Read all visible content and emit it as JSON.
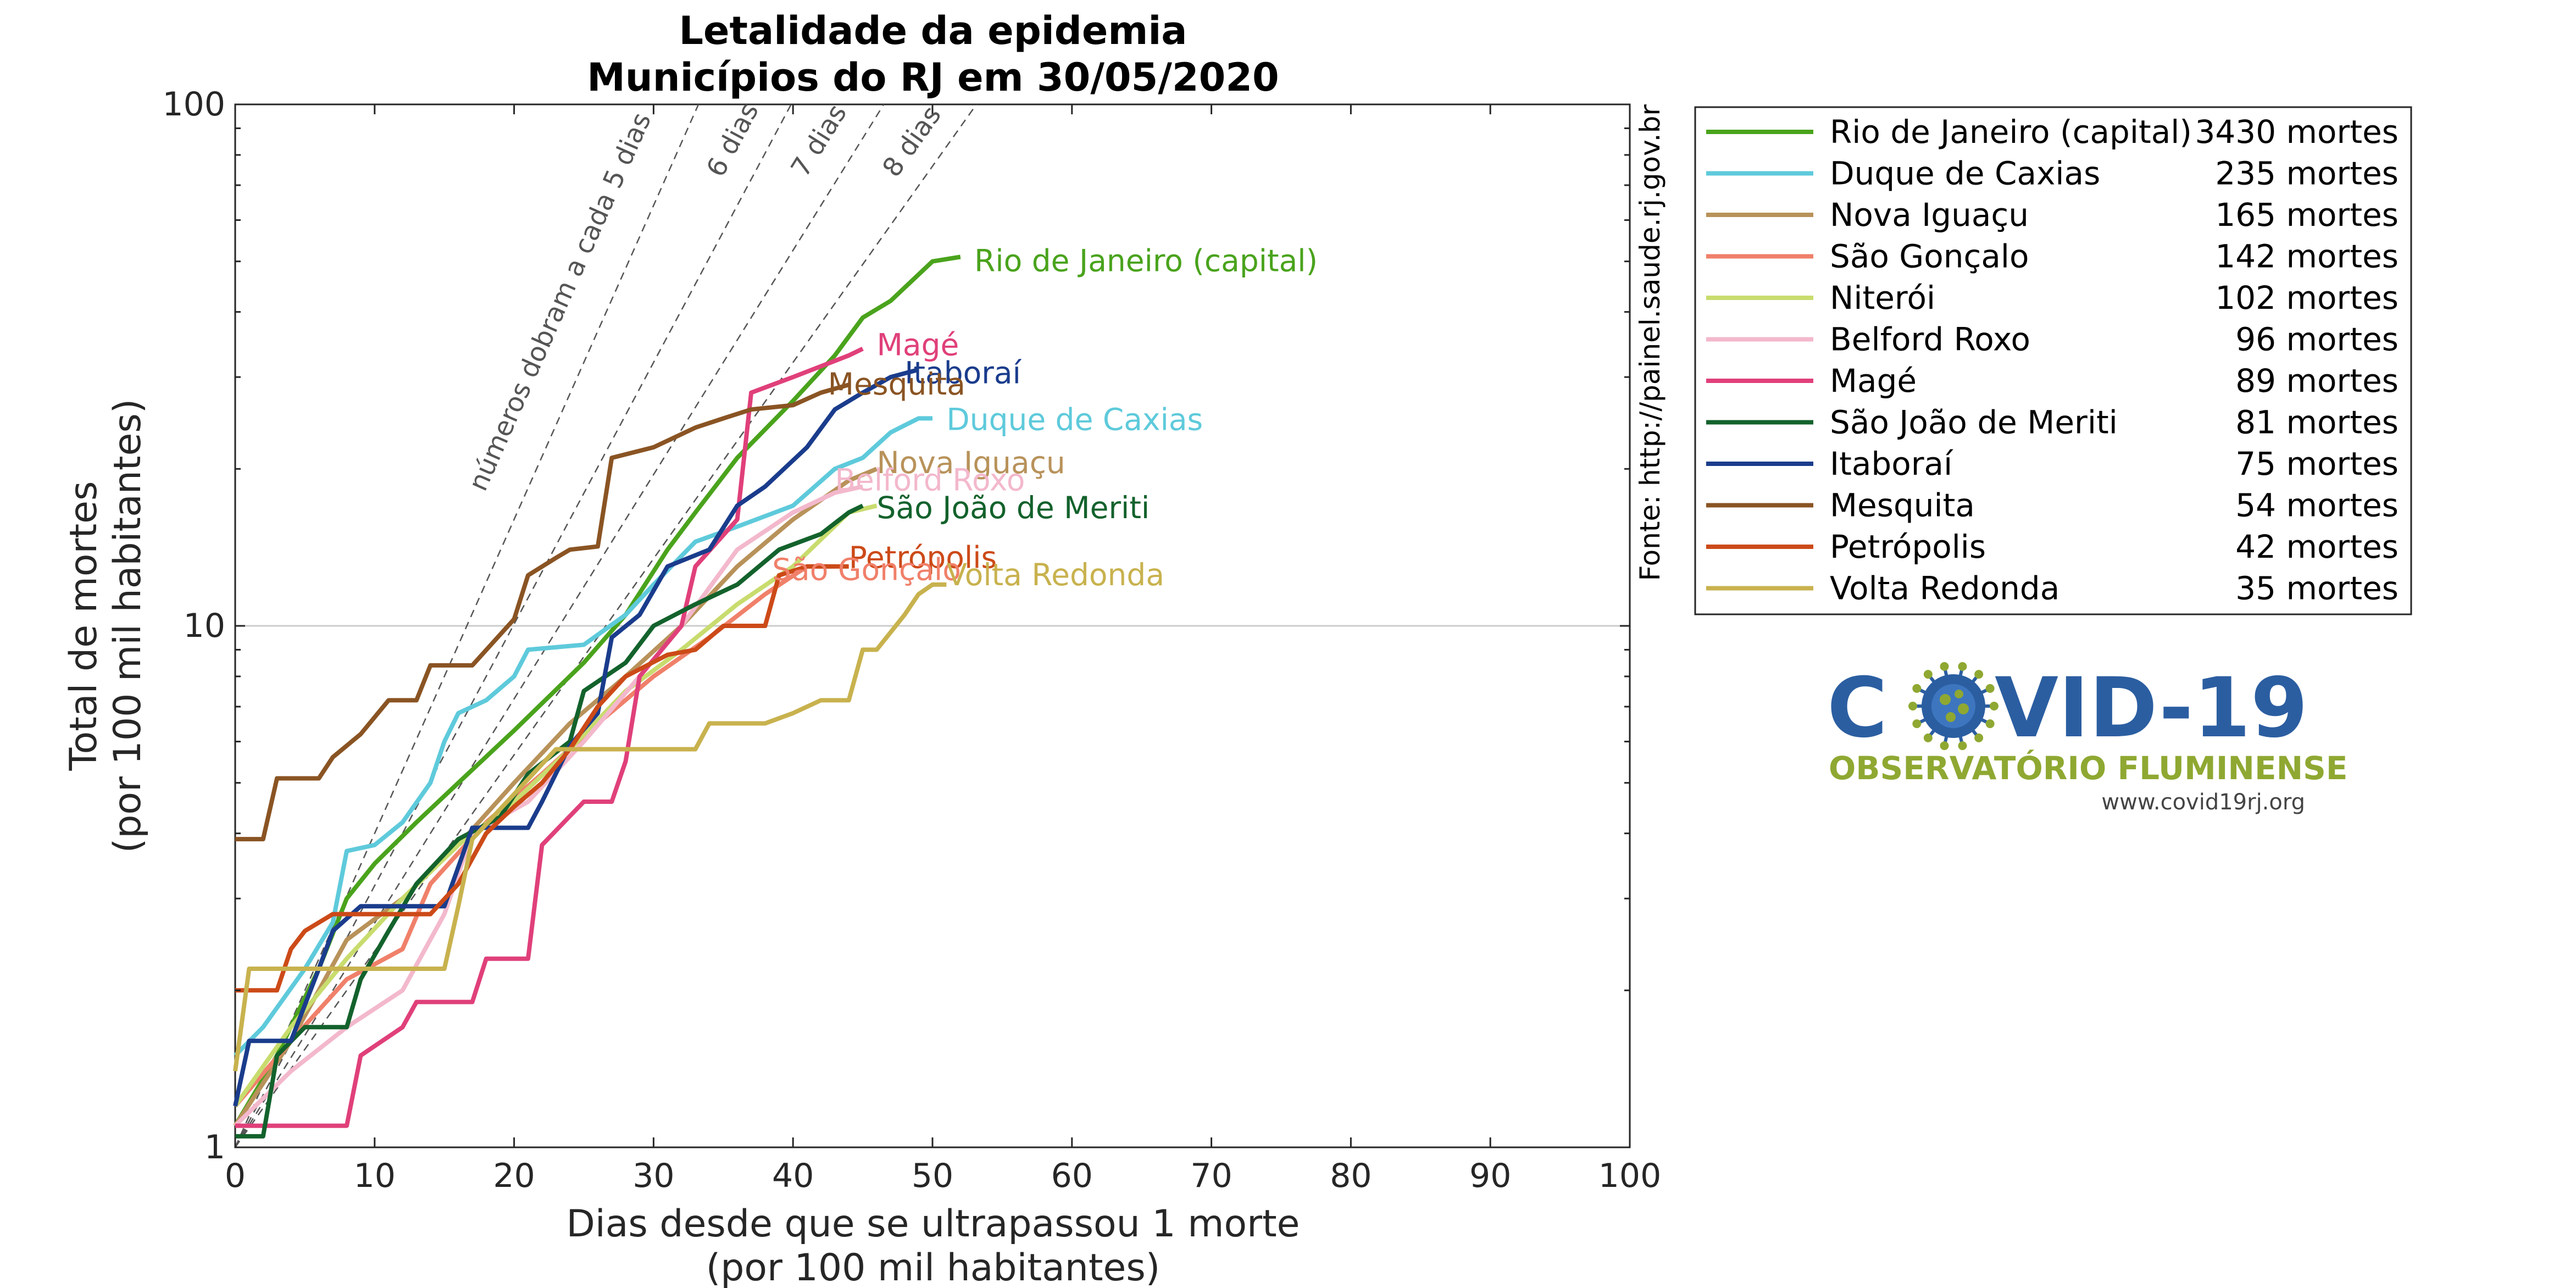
{
  "chart_data": {
    "type": "line",
    "title": "Letalidade da epidemia",
    "subtitle": "Municípios do RJ em 30/05/2020",
    "xlabel": "Dias desde que se ultrapassou 1 morte",
    "xlabel2": "(por 100 mil habitantes)",
    "ylabel": "Total de mortes",
    "ylabel2": "(por 100 mil habitantes)",
    "source": "Fonte: http://painel.saude.rj.gov.br",
    "xlim": [
      0,
      100
    ],
    "ylim": [
      1,
      100
    ],
    "yscale": "log",
    "xticks": [
      "0",
      "10",
      "20",
      "30",
      "40",
      "50",
      "60",
      "70",
      "80",
      "90",
      "100"
    ],
    "yticks": [
      "1",
      "10",
      "100"
    ],
    "grid": "y=10 only",
    "legend_position": "right",
    "guides": [
      {
        "label": "números dobram a cada 5 dias",
        "doubling_days": 5
      },
      {
        "label": "6 dias",
        "doubling_days": 6
      },
      {
        "label": "7 dias",
        "doubling_days": 7
      },
      {
        "label": "8 dias",
        "doubling_days": 8
      }
    ],
    "series": [
      {
        "name": "Rio de Janeiro (capital)",
        "deaths": "3430 mortes",
        "color": "#4aa31c",
        "points": [
          [
            0,
            1.1
          ],
          [
            3,
            1.5
          ],
          [
            6,
            2.2
          ],
          [
            8,
            3.0
          ],
          [
            10,
            3.5
          ],
          [
            13,
            4.2
          ],
          [
            16,
            5.0
          ],
          [
            20,
            6.3
          ],
          [
            25,
            8.5
          ],
          [
            28,
            10.5
          ],
          [
            31,
            14.0
          ],
          [
            33,
            16.5
          ],
          [
            36,
            21.0
          ],
          [
            40,
            27.0
          ],
          [
            43,
            33.0
          ],
          [
            45,
            39.0
          ],
          [
            47,
            42.0
          ],
          [
            50,
            50.0
          ],
          [
            52,
            51.0
          ]
        ]
      },
      {
        "name": "Duque de Caxias",
        "deaths": "235 mortes",
        "color": "#5ecadb",
        "points": [
          [
            0,
            1.5
          ],
          [
            2,
            1.7
          ],
          [
            5,
            2.2
          ],
          [
            7,
            2.7
          ],
          [
            8,
            3.7
          ],
          [
            10,
            3.8
          ],
          [
            12,
            4.2
          ],
          [
            14,
            5.0
          ],
          [
            15,
            6.0
          ],
          [
            16,
            6.8
          ],
          [
            18,
            7.2
          ],
          [
            20,
            8.0
          ],
          [
            21,
            9.0
          ],
          [
            25,
            9.2
          ],
          [
            28,
            10.5
          ],
          [
            30,
            12.0
          ],
          [
            33,
            14.5
          ],
          [
            36,
            15.5
          ],
          [
            40,
            17.0
          ],
          [
            43,
            20.0
          ],
          [
            45,
            21.0
          ],
          [
            47,
            23.5
          ],
          [
            49,
            25.0
          ],
          [
            50,
            25.0
          ]
        ]
      },
      {
        "name": "Nova Iguaçu",
        "deaths": "165 mortes",
        "color": "#b8925a",
        "points": [
          [
            0,
            1.1
          ],
          [
            4,
            1.6
          ],
          [
            8,
            2.5
          ],
          [
            12,
            3.0
          ],
          [
            16,
            3.8
          ],
          [
            20,
            5.0
          ],
          [
            24,
            6.5
          ],
          [
            28,
            8.0
          ],
          [
            32,
            10.0
          ],
          [
            36,
            13.0
          ],
          [
            40,
            16.0
          ],
          [
            44,
            19.0
          ],
          [
            46,
            20.0
          ]
        ]
      },
      {
        "name": "São Gonçalo",
        "deaths": "142 mortes",
        "color": "#f0806a",
        "points": [
          [
            0,
            1.2
          ],
          [
            4,
            1.6
          ],
          [
            8,
            2.1
          ],
          [
            12,
            2.4
          ],
          [
            14,
            3.2
          ],
          [
            18,
            4.2
          ],
          [
            22,
            5.2
          ],
          [
            26,
            6.5
          ],
          [
            30,
            8.0
          ],
          [
            34,
            9.5
          ],
          [
            38,
            11.5
          ],
          [
            41,
            13.0
          ],
          [
            43,
            13.0
          ]
        ]
      },
      {
        "name": "Niterói",
        "deaths": "102 mortes",
        "color": "#c8dc6e",
        "points": [
          [
            0,
            1.2
          ],
          [
            4,
            1.7
          ],
          [
            8,
            2.3
          ],
          [
            12,
            3.0
          ],
          [
            16,
            3.8
          ],
          [
            20,
            4.6
          ],
          [
            24,
            5.8
          ],
          [
            28,
            7.5
          ],
          [
            32,
            9.0
          ],
          [
            36,
            11.0
          ],
          [
            40,
            13.0
          ],
          [
            44,
            16.5
          ],
          [
            46,
            17.0
          ]
        ]
      },
      {
        "name": "Belford Roxo",
        "deaths": "96 mortes",
        "color": "#f3b8cc",
        "points": [
          [
            0,
            1.1
          ],
          [
            4,
            1.4
          ],
          [
            8,
            1.7
          ],
          [
            12,
            2.0
          ],
          [
            15,
            2.8
          ],
          [
            17,
            4.0
          ],
          [
            21,
            4.6
          ],
          [
            25,
            6.0
          ],
          [
            29,
            8.0
          ],
          [
            32,
            10.0
          ],
          [
            36,
            14.0
          ],
          [
            40,
            16.5
          ],
          [
            43,
            18.0
          ],
          [
            45,
            18.5
          ]
        ]
      },
      {
        "name": "Magé",
        "deaths": "89 mortes",
        "color": "#e0407a",
        "points": [
          [
            0,
            1.1
          ],
          [
            8,
            1.1
          ],
          [
            9,
            1.5
          ],
          [
            12,
            1.7
          ],
          [
            13,
            1.9
          ],
          [
            17,
            1.9
          ],
          [
            18,
            2.3
          ],
          [
            21,
            2.3
          ],
          [
            22,
            3.8
          ],
          [
            25,
            4.6
          ],
          [
            27,
            4.6
          ],
          [
            28,
            5.5
          ],
          [
            29,
            8.0
          ],
          [
            32,
            10.0
          ],
          [
            33,
            13.0
          ],
          [
            36,
            16.0
          ],
          [
            37,
            28.0
          ],
          [
            40,
            30.0
          ],
          [
            44,
            33.0
          ],
          [
            45,
            34.0
          ]
        ]
      },
      {
        "name": "São João de Meriti",
        "deaths": "81 mortes",
        "color": "#13622c",
        "points": [
          [
            0,
            1.05
          ],
          [
            2,
            1.05
          ],
          [
            3,
            1.5
          ],
          [
            5,
            1.7
          ],
          [
            8,
            1.7
          ],
          [
            9,
            2.1
          ],
          [
            11,
            2.6
          ],
          [
            13,
            3.2
          ],
          [
            16,
            3.9
          ],
          [
            19,
            4.3
          ],
          [
            21,
            5.2
          ],
          [
            24,
            6.0
          ],
          [
            25,
            7.5
          ],
          [
            28,
            8.5
          ],
          [
            30,
            10.0
          ],
          [
            33,
            11.0
          ],
          [
            36,
            12.0
          ],
          [
            39,
            14.0
          ],
          [
            42,
            15.0
          ],
          [
            44,
            16.5
          ],
          [
            45,
            17.0
          ]
        ]
      },
      {
        "name": "Itaboraí",
        "deaths": "75 mortes",
        "color": "#1a3c8c",
        "points": [
          [
            0,
            1.2
          ],
          [
            1,
            1.6
          ],
          [
            4,
            1.6
          ],
          [
            6,
            2.2
          ],
          [
            7,
            2.6
          ],
          [
            9,
            2.9
          ],
          [
            15,
            2.9
          ],
          [
            17,
            4.1
          ],
          [
            21,
            4.1
          ],
          [
            22,
            4.6
          ],
          [
            24,
            5.9
          ],
          [
            26,
            6.8
          ],
          [
            27,
            9.5
          ],
          [
            29,
            10.5
          ],
          [
            31,
            13.0
          ],
          [
            34,
            14.0
          ],
          [
            36,
            17.0
          ],
          [
            38,
            18.5
          ],
          [
            41,
            22.0
          ],
          [
            43,
            26.0
          ],
          [
            45,
            28.0
          ],
          [
            47,
            30.0
          ],
          [
            49,
            31.0
          ]
        ]
      },
      {
        "name": "Mesquita",
        "deaths": "54 mortes",
        "color": "#8a5423",
        "points": [
          [
            0,
            3.9
          ],
          [
            2,
            3.9
          ],
          [
            3,
            5.1
          ],
          [
            6,
            5.1
          ],
          [
            7,
            5.6
          ],
          [
            9,
            6.2
          ],
          [
            11,
            7.2
          ],
          [
            13,
            7.2
          ],
          [
            14,
            8.4
          ],
          [
            17,
            8.4
          ],
          [
            20,
            10.3
          ],
          [
            21,
            12.5
          ],
          [
            23,
            13.5
          ],
          [
            24,
            14.0
          ],
          [
            26,
            14.2
          ],
          [
            27,
            21.0
          ],
          [
            30,
            22.0
          ],
          [
            33,
            24.0
          ],
          [
            35,
            25.0
          ],
          [
            37,
            26.0
          ],
          [
            40,
            26.5
          ],
          [
            42,
            28.0
          ],
          [
            44,
            29.0
          ]
        ]
      },
      {
        "name": "Petrópolis",
        "deaths": "42 mortes",
        "color": "#cc4a18",
        "points": [
          [
            0,
            2.0
          ],
          [
            3,
            2.0
          ],
          [
            4,
            2.4
          ],
          [
            5,
            2.6
          ],
          [
            7,
            2.8
          ],
          [
            9,
            2.8
          ],
          [
            12,
            2.8
          ],
          [
            14,
            2.8
          ],
          [
            16,
            3.2
          ],
          [
            18,
            4.0
          ],
          [
            20,
            4.5
          ],
          [
            22,
            5.0
          ],
          [
            24,
            5.8
          ],
          [
            26,
            7.0
          ],
          [
            28,
            8.0
          ],
          [
            31,
            8.8
          ],
          [
            33,
            9.0
          ],
          [
            35,
            10.0
          ],
          [
            38,
            10.0
          ],
          [
            39,
            12.5
          ],
          [
            41,
            13.0
          ],
          [
            44,
            13.0
          ]
        ]
      },
      {
        "name": "Volta Redonda",
        "deaths": "35 mortes",
        "color": "#c8b24e",
        "points": [
          [
            0,
            1.4
          ],
          [
            1,
            2.2
          ],
          [
            6,
            2.2
          ],
          [
            15,
            2.2
          ],
          [
            16,
            2.9
          ],
          [
            17,
            3.9
          ],
          [
            23,
            5.8
          ],
          [
            26,
            5.8
          ],
          [
            33,
            5.8
          ],
          [
            34,
            6.5
          ],
          [
            38,
            6.5
          ],
          [
            40,
            6.8
          ],
          [
            42,
            7.2
          ],
          [
            44,
            7.2
          ],
          [
            45,
            9.0
          ],
          [
            46,
            9.0
          ],
          [
            48,
            10.5
          ],
          [
            49,
            11.5
          ],
          [
            50,
            12.0
          ],
          [
            51,
            12.0
          ]
        ]
      }
    ],
    "series_labels": [
      {
        "text": "Rio de Janeiro (capital)",
        "color": "#4aa31c"
      },
      {
        "text": "Magé",
        "color": "#e0407a"
      },
      {
        "text": "Itaboraí",
        "color": "#1a3c8c"
      },
      {
        "text": "Mesquita",
        "color": "#8a5423"
      },
      {
        "text": "Duque de Caxias",
        "color": "#5ecadb"
      },
      {
        "text": "Nova Iguaçu",
        "color": "#b8925a"
      },
      {
        "text": "Belford Roxo",
        "color": "#f3b8cc"
      },
      {
        "text": "São João de Meriti",
        "color": "#13622c"
      },
      {
        "text": "Petrópolis",
        "color": "#cc4a18"
      },
      {
        "text": "São Gonçalo",
        "color": "#f0806a"
      },
      {
        "text": "Volta Redonda",
        "color": "#c8b24e"
      }
    ]
  },
  "logo": {
    "word_left": "C",
    "word_right": "VID-19",
    "subtitle": "OBSERVATÓRIO FLUMINENSE",
    "url": "www.covid19rj.org",
    "virus_color": "#2b5ea1",
    "virus_dots": "#8fa832"
  }
}
